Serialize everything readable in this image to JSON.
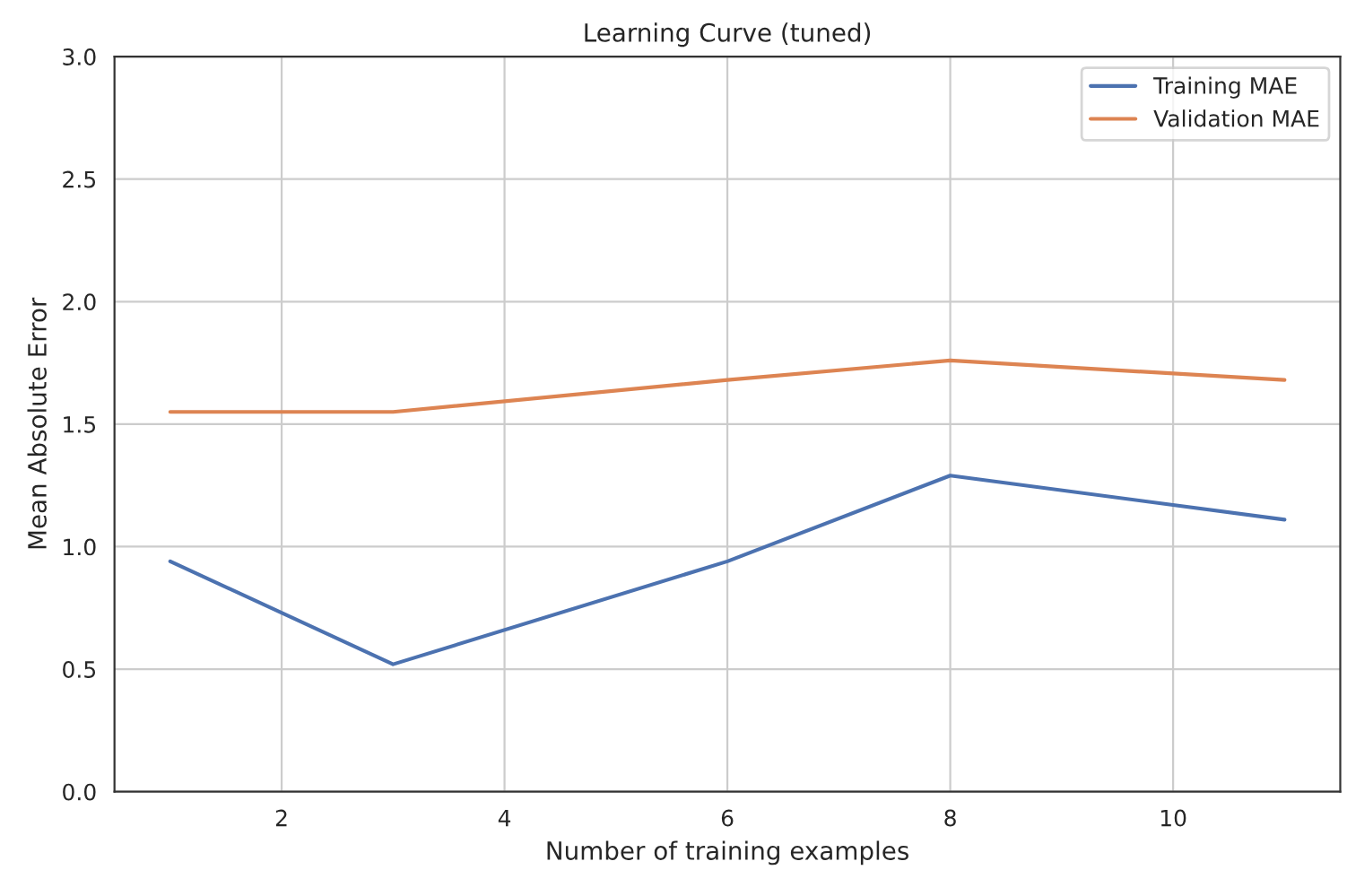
{
  "chart_data": {
    "type": "line",
    "title": "Learning Curve (tuned)",
    "xlabel": "Number of training examples",
    "ylabel": "Mean Absolute Error",
    "series": [
      {
        "name": "Training MAE",
        "color": "#4c72b0",
        "x": [
          1,
          3,
          6,
          8,
          11
        ],
        "values": [
          0.94,
          0.52,
          0.94,
          1.29,
          1.11
        ]
      },
      {
        "name": "Validation MAE",
        "color": "#dd8452",
        "x": [
          1,
          3,
          6,
          8,
          11
        ],
        "values": [
          1.55,
          1.55,
          1.68,
          1.76,
          1.68
        ]
      }
    ],
    "xlim": [
      0.5,
      11.5
    ],
    "xticks": [
      2,
      4,
      6,
      8,
      10
    ],
    "ylim": [
      0,
      3
    ],
    "yticks": [
      {
        "value": 0,
        "label": "0.0"
      },
      0.5,
      {
        "value": 1,
        "label": "1.0"
      },
      1.5,
      {
        "value": 2,
        "label": "2.0"
      },
      2.5,
      {
        "value": 3,
        "label": "3.0"
      }
    ],
    "grid": true,
    "legend": "top right",
    "marker": "none",
    "line_style": "solid"
  }
}
